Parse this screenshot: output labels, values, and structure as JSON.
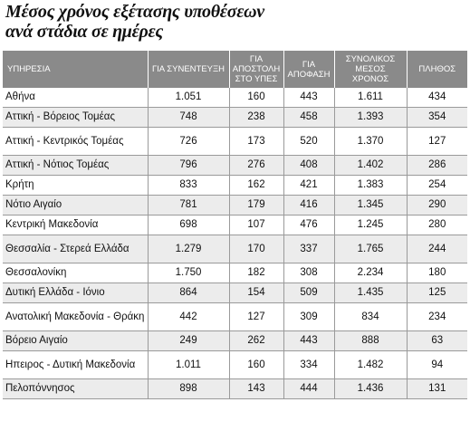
{
  "title": {
    "line1": "Μέσος χρόνος εξέτασης υποθέσεων",
    "line2": "ανά στάδια σε ημέρες"
  },
  "table": {
    "headers": [
      "ΥΠΗΡΕΣΙΑ",
      "ΓΙΑ ΣΥΝΕΝΤΕΥΞΗ",
      "ΓΙΑ ΑΠΟΣΤΟΛΗ ΣΤΟ ΥΠΕΣ",
      "ΓΙΑ ΑΠΟΦΑΣΗ",
      "ΣΥΝΟΛΙΚΟΣ ΜΕΣΟΣ ΧΡΟΝΟΣ",
      "ΠΛΗΘΟΣ"
    ],
    "rows": [
      [
        "Αθήνα",
        "1.051",
        "160",
        "443",
        "1.611",
        "434"
      ],
      [
        "Αττική - Βόρειος Τομέας",
        "748",
        "238",
        "458",
        "1.393",
        "354"
      ],
      [
        "Αττική - Κεντρικός Τομέας",
        "726",
        "173",
        "520",
        "1.370",
        "127"
      ],
      [
        "Αττική - Νότιος Τομέας",
        "796",
        "276",
        "408",
        "1.402",
        "286"
      ],
      [
        "Κρήτη",
        "833",
        "162",
        "421",
        "1.383",
        "254"
      ],
      [
        "Νότιο Αιγαίο",
        "781",
        "179",
        "416",
        "1.345",
        "290"
      ],
      [
        "Κεντρική Μακεδονία",
        "698",
        "107",
        "476",
        "1.245",
        "280"
      ],
      [
        "Θεσσαλία - Στερεά Ελλάδα",
        "1.279",
        "170",
        "337",
        "1.765",
        "244"
      ],
      [
        "Θεσσαλονίκη",
        "1.750",
        "182",
        "308",
        "2.234",
        "180"
      ],
      [
        "Δυτική Ελλάδα - Ιόνιο",
        "864",
        "154",
        "509",
        "1.435",
        "125"
      ],
      [
        "Ανατολική Μακεδονία - Θράκη",
        "442",
        "127",
        "309",
        "834",
        "234"
      ],
      [
        "Βόρειο Αιγαίο",
        "249",
        "262",
        "443",
        "888",
        "63"
      ],
      [
        "Ηπειρος - Δυτική Μακεδονία",
        "1.011",
        "160",
        "334",
        "1.482",
        "94"
      ],
      [
        "Πελοπόννησος",
        "898",
        "143",
        "444",
        "1.436",
        "131"
      ]
    ]
  }
}
